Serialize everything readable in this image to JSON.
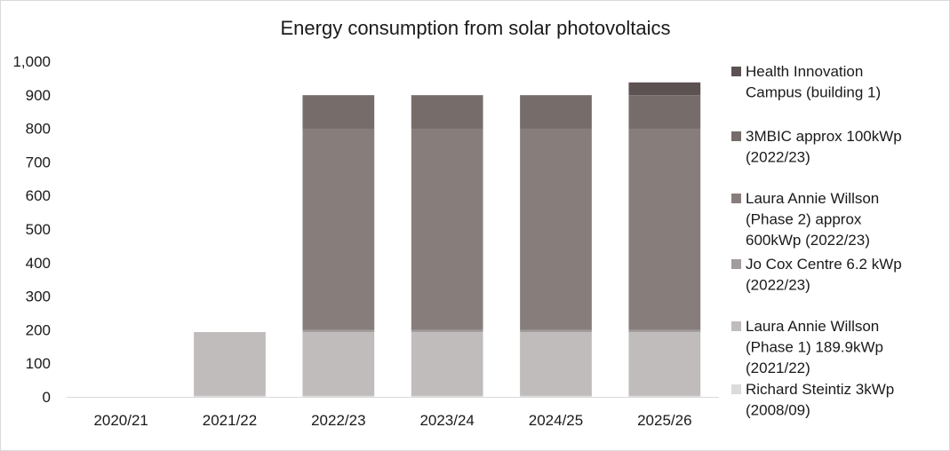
{
  "chart_data": {
    "type": "bar",
    "stacked": true,
    "title": "Energy consumption from solar photovoltaics",
    "xlabel": "",
    "ylabel": "",
    "ylim": [
      0,
      1000
    ],
    "y_ticks": [
      0,
      100,
      200,
      300,
      400,
      500,
      600,
      700,
      800,
      900,
      1000
    ],
    "y_tick_labels": [
      "0",
      "100",
      "200",
      "300",
      "400",
      "500",
      "600",
      "700",
      "800",
      "900",
      "1,000"
    ],
    "grid": false,
    "legend_position": "right",
    "categories": [
      "2020/21",
      "2021/22",
      "2022/23",
      "2023/24",
      "2024/25",
      "2025/26"
    ],
    "series": [
      {
        "name": "Richard Steintiz 3kWp (2008/09)",
        "color": "#dcdada",
        "values": [
          0,
          3,
          3,
          3,
          3,
          3
        ]
      },
      {
        "name": "Laura Annie Willson (Phase 1) 189.9kWp (2021/22)",
        "color": "#c0bcbc",
        "values": [
          0,
          190,
          190,
          190,
          190,
          190
        ]
      },
      {
        "name": "Jo Cox Centre 6.2 kWp (2022/23)",
        "color": "#a29c9c",
        "values": [
          0,
          0,
          6,
          6,
          6,
          6
        ]
      },
      {
        "name": "Laura Annie Willson (Phase 2) approx 600kWp (2022/23)",
        "color": "#877e7c",
        "values": [
          0,
          0,
          600,
          600,
          600,
          600
        ]
      },
      {
        "name": "3MBIC approx 100kWp (2022/23)",
        "color": "#766d6b",
        "values": [
          0,
          0,
          100,
          100,
          100,
          100
        ]
      },
      {
        "name": "Health Innovation Campus (building 1)",
        "color": "#5d5252",
        "values": [
          0,
          0,
          0,
          0,
          0,
          38
        ]
      }
    ],
    "legend": [
      {
        "lines": [
          "Health Innovation",
          "Campus (building 1)"
        ]
      },
      {
        "lines": [
          "3MBIC approx 100kWp",
          "(2022/23)"
        ]
      },
      {
        "lines": [
          "Laura Annie Willson",
          "(Phase 2) approx",
          "600kWp (2022/23)"
        ]
      },
      {
        "lines": [
          "Jo Cox Centre 6.2 kWp",
          "(2022/23)"
        ]
      },
      {
        "lines": [
          "Laura Annie Willson",
          "(Phase 1) 189.9kWp",
          "(2021/22)"
        ]
      },
      {
        "lines": [
          "Richard Steintiz 3kWp",
          "(2008/09)"
        ]
      }
    ]
  }
}
